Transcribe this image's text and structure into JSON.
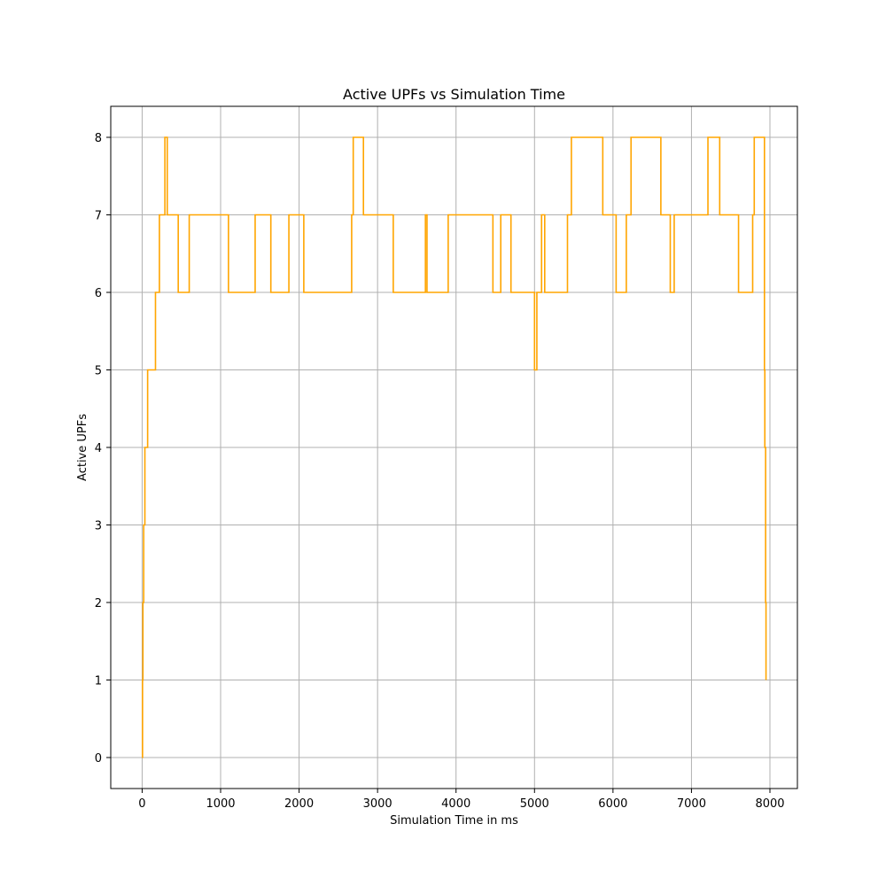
{
  "chart_data": {
    "type": "line",
    "step": "post",
    "title": "Active UPFs vs Simulation Time",
    "xlabel": "Simulation Time in ms",
    "ylabel": "Active UPFs",
    "xlim": [
      -400,
      8350
    ],
    "ylim": [
      -0.4,
      8.4
    ],
    "xticks": [
      0,
      1000,
      2000,
      3000,
      4000,
      5000,
      6000,
      7000,
      8000
    ],
    "yticks": [
      0,
      1,
      2,
      3,
      4,
      5,
      6,
      7,
      8
    ],
    "grid": true,
    "series": [
      {
        "color": "#ffa500",
        "points": [
          [
            0,
            0
          ],
          [
            5,
            1
          ],
          [
            10,
            2
          ],
          [
            20,
            3
          ],
          [
            35,
            4
          ],
          [
            70,
            5
          ],
          [
            170,
            6
          ],
          [
            220,
            7
          ],
          [
            290,
            8
          ],
          [
            320,
            7
          ],
          [
            460,
            6
          ],
          [
            600,
            7
          ],
          [
            1100,
            6
          ],
          [
            1440,
            7
          ],
          [
            1640,
            6
          ],
          [
            1870,
            7
          ],
          [
            2060,
            6
          ],
          [
            2670,
            7
          ],
          [
            2690,
            8
          ],
          [
            2820,
            7
          ],
          [
            3200,
            6
          ],
          [
            3610,
            7
          ],
          [
            3630,
            6
          ],
          [
            3900,
            7
          ],
          [
            4470,
            6
          ],
          [
            4570,
            7
          ],
          [
            4700,
            6
          ],
          [
            5000,
            5
          ],
          [
            5030,
            6
          ],
          [
            5090,
            7
          ],
          [
            5130,
            6
          ],
          [
            5420,
            7
          ],
          [
            5470,
            8
          ],
          [
            5870,
            7
          ],
          [
            6040,
            6
          ],
          [
            6170,
            7
          ],
          [
            6230,
            8
          ],
          [
            6610,
            7
          ],
          [
            6730,
            6
          ],
          [
            6780,
            7
          ],
          [
            7210,
            8
          ],
          [
            7360,
            7
          ],
          [
            7600,
            6
          ],
          [
            7780,
            7
          ],
          [
            7800,
            8
          ],
          [
            7930,
            5
          ],
          [
            7935,
            4
          ],
          [
            7945,
            2
          ],
          [
            7950,
            1
          ]
        ]
      }
    ]
  }
}
